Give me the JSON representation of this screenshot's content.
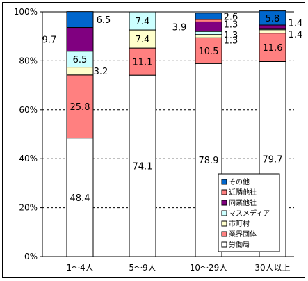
{
  "chart_data": {
    "type": "bar",
    "stacked": true,
    "percent": true,
    "categories": [
      "1～4人",
      "5～9人",
      "10～29人",
      "30人以上"
    ],
    "y_ticks": [
      "0%",
      "20%",
      "40%",
      "60%",
      "80%",
      "100%"
    ],
    "ylim": [
      0,
      100
    ],
    "grid": "dashed-horizontal",
    "legend_position": "bottom-right",
    "series": [
      {
        "name": "労働局",
        "color": "#ffffff",
        "values": [
          48.4,
          74.1,
          78.9,
          79.7
        ],
        "labels": [
          "48.4",
          "74.1",
          "78.9",
          "79.7"
        ]
      },
      {
        "name": "業界団体",
        "color": "#ff8080",
        "values": [
          25.8,
          11.1,
          10.5,
          11.6
        ],
        "labels": [
          "25.8",
          "11.1",
          "10.5",
          "11.6"
        ]
      },
      {
        "name": "市町村",
        "color": "#ffffcc",
        "values": [
          3.2,
          7.4,
          1.3,
          1.4
        ],
        "labels": [
          "3.2",
          "7.4",
          "1.3",
          "1.4"
        ]
      },
      {
        "name": "マスメディア",
        "color": "#ccffff",
        "values": [
          6.5,
          7.4,
          1.3,
          0.5
        ],
        "labels": [
          "6.5",
          "7.4",
          "1.3",
          ""
        ]
      },
      {
        "name": "同業他社",
        "color": "#800080",
        "values": [
          9.7,
          0,
          3.9,
          1.4
        ],
        "labels": [
          "9.7",
          "",
          "3.9",
          "1.4"
        ]
      },
      {
        "name": "近隣他社",
        "color": "#ff8080",
        "values": [
          0,
          0,
          1.0,
          0
        ],
        "labels": [
          "",
          "",
          "",
          ""
        ]
      },
      {
        "name": "その他",
        "color": "#0066cc",
        "values": [
          6.5,
          0,
          2.6,
          5.8
        ],
        "labels": [
          "6.5",
          "",
          "2.6",
          "5.8"
        ]
      }
    ],
    "extra_labels": [
      {
        "text": "1.3",
        "category_index": 2,
        "series_index": 4
      }
    ]
  }
}
